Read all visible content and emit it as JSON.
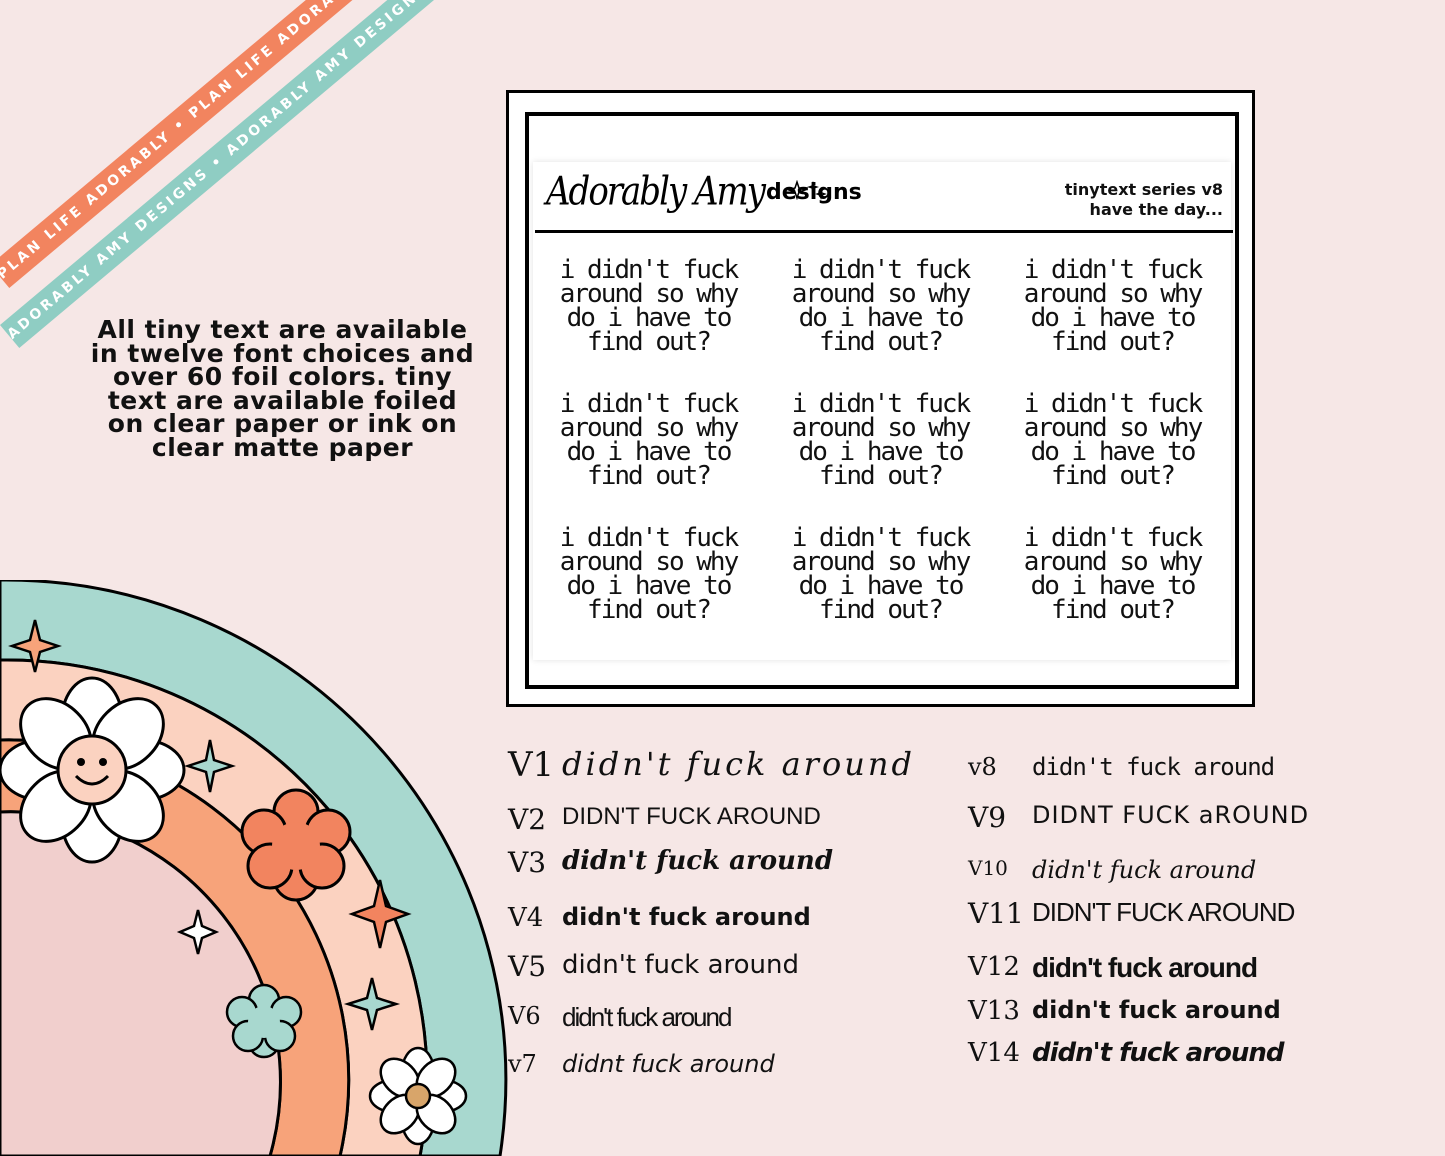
{
  "ribbons": {
    "orange_text": "PLAN LIFE ADORABLY • PLAN LIFE ADORABLY • PLAN LIFE ADORABLY •",
    "teal_text": "ADORABLY AMY DESIGNS • ADORABLY AMY DESIGNS • ADORABLY AMY DESIGNS •"
  },
  "info": {
    "text": "All tiny text are available in twelve font choices and over 60 foil colors.  tiny text are available foiled on clear paper or ink on clear matte paper"
  },
  "sheet": {
    "brand_script": "Adorably Amy",
    "brand_designs": "designs",
    "series_line1": "tinytext series v8",
    "series_line2": "have the day...",
    "sticker_lines": [
      "i didn't fuck",
      "around so why",
      "do i have to",
      "find out?"
    ]
  },
  "versions": [
    {
      "label": "V1",
      "sample": "didn't fuck around"
    },
    {
      "label": "V2",
      "sample": "DIDN'T FUCK AROUND"
    },
    {
      "label": "V3",
      "sample": "didn't fuck around"
    },
    {
      "label": "V4",
      "sample": "didn't fuck around"
    },
    {
      "label": "V5",
      "sample": "didn't fuck around"
    },
    {
      "label": "V6",
      "sample": "didn't fuck around"
    },
    {
      "label": "v7",
      "sample": "didnt fuck around"
    },
    {
      "label": "v8",
      "sample": "didn't fuck around"
    },
    {
      "label": "V9",
      "sample": "DIDNT FUCK aROUND"
    },
    {
      "label": "V10",
      "sample": "didn't fuck around"
    },
    {
      "label": "V11",
      "sample": "DIDN'T FUCK AROUND"
    },
    {
      "label": "V12",
      "sample": "didn't fuck around"
    },
    {
      "label": "V13",
      "sample": "didn't fuck around"
    },
    {
      "label": "V14",
      "sample": "didn't fuck around"
    }
  ],
  "colors": {
    "background": "#f6e7e6",
    "orange": "#f2845f",
    "teal": "#8fcdc3",
    "peach": "#f7a37a",
    "pale_peach": "#fbd2c0",
    "pale_pink": "#f1cfcd",
    "flower_orange": "#f2845f"
  }
}
